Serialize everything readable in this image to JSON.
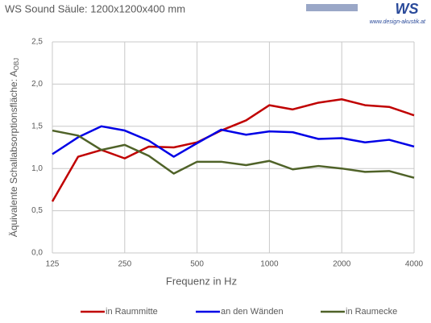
{
  "logo": {
    "mark": "WS",
    "url": "www.design-akustik.at"
  },
  "chart_data": {
    "type": "line",
    "title": "WS Sound Säule: 1200x1200x400 mm",
    "xlabel": "Frequenz in Hz",
    "ylabel": "Äquivalente Schallabsorptionsfläche: A",
    "ylabel_sub": "OBJ",
    "x": [
      125,
      160,
      200,
      250,
      315,
      400,
      500,
      630,
      800,
      1000,
      1250,
      1600,
      2000,
      2500,
      3150,
      4000
    ],
    "xlog": true,
    "xlim": [
      125,
      4000
    ],
    "xticks": [
      125,
      250,
      500,
      1000,
      2000,
      4000
    ],
    "ylim": [
      0,
      2.5
    ],
    "yticks": [
      {
        "value": 0,
        "label": "0,0"
      },
      {
        "value": 0.5,
        "label": "0,5"
      },
      {
        "value": 1,
        "label": "1,0"
      },
      {
        "value": 1.5,
        "label": "1,5"
      },
      {
        "value": 2,
        "label": "2,0"
      },
      {
        "value": 2.5,
        "label": "2,5"
      }
    ],
    "grid": true,
    "legend": "bottom",
    "series": [
      {
        "name": "in Raummitte",
        "color": "#c00000",
        "values": [
          0.61,
          1.14,
          1.22,
          1.12,
          1.26,
          1.25,
          1.31,
          1.45,
          1.57,
          1.75,
          1.7,
          1.78,
          1.82,
          1.75,
          1.73,
          1.63
        ]
      },
      {
        "name": "an den Wänden",
        "color": "#0000e6",
        "values": [
          1.17,
          1.37,
          1.5,
          1.45,
          1.33,
          1.14,
          1.3,
          1.46,
          1.4,
          1.44,
          1.43,
          1.35,
          1.36,
          1.31,
          1.34,
          1.26
        ]
      },
      {
        "name": "in Raumecke",
        "color": "#4f6228",
        "values": [
          1.45,
          1.39,
          1.22,
          1.28,
          1.15,
          0.94,
          1.08,
          1.08,
          1.04,
          1.09,
          0.99,
          1.03,
          1.0,
          0.96,
          0.97,
          0.89
        ]
      }
    ]
  }
}
